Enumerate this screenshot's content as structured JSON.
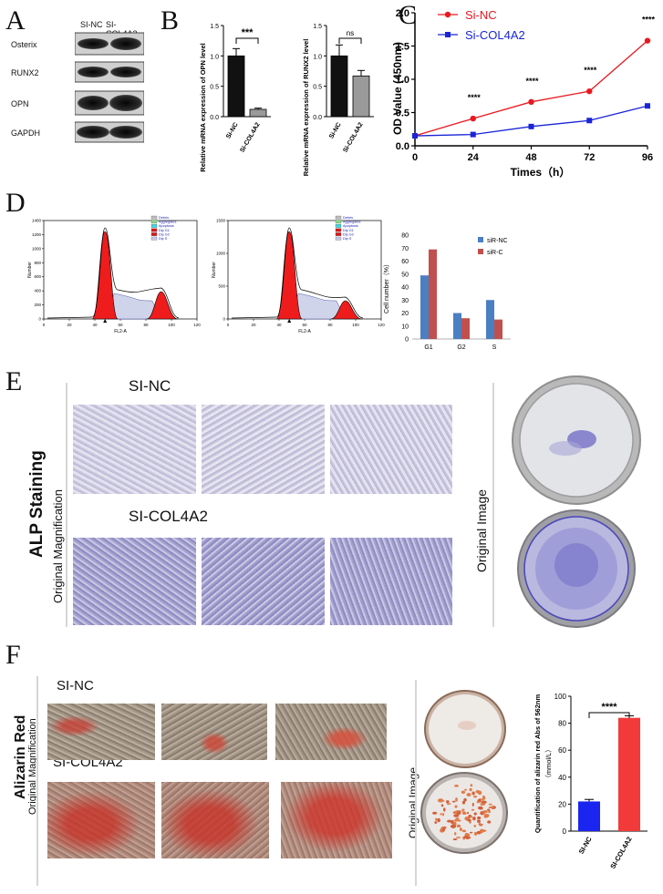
{
  "panels": {
    "A": {
      "label": "A",
      "lanes": [
        "SI-NC",
        "SI-COL4A2"
      ],
      "proteins": [
        "Osterix",
        "RUNX2",
        "OPN",
        "GAPDH"
      ]
    },
    "B": {
      "label": "B",
      "charts": [
        {
          "type": "bar",
          "categories": [
            "Si-NC",
            "Si-COL4A2"
          ],
          "values": [
            1.0,
            0.12
          ],
          "errors": [
            0.12,
            0.02
          ],
          "ylabel": "Relative mRNA expression of OPN level",
          "ylim": [
            0,
            1.5
          ],
          "yticks": [
            "0.0",
            "0.5",
            "1.0",
            "1.5"
          ],
          "sig": "***",
          "colors": [
            "#111111",
            "#9a9a9a"
          ]
        },
        {
          "type": "bar",
          "categories": [
            "Si-NC",
            "Si-COL4A2"
          ],
          "values": [
            1.0,
            0.67
          ],
          "errors": [
            0.18,
            0.09
          ],
          "ylabel": "Relative mRNA expression of RUNX2 level",
          "ylim": [
            0,
            1.5
          ],
          "yticks": [
            "0.0",
            "0.5",
            "1.0",
            "1.5"
          ],
          "sig": "ns",
          "colors": [
            "#111111",
            "#9a9a9a"
          ]
        }
      ]
    },
    "C": {
      "label": "C",
      "type": "line",
      "x": [
        0,
        24,
        48,
        72,
        96
      ],
      "xticks": [
        "0",
        "24",
        "48",
        "72",
        "96"
      ],
      "xlabel": "Times（h）",
      "ylabel": "OD Value (450nm)",
      "ylim": [
        0,
        2.0
      ],
      "yticks": [
        "0.0",
        "0.5",
        "1.0",
        "1.5",
        "2.0"
      ],
      "sig": [
        "****",
        "****",
        "****",
        "****"
      ],
      "series": [
        {
          "name": "Si-NC",
          "values": [
            0.15,
            0.41,
            0.66,
            0.82,
            1.58
          ],
          "color": "#e8191f"
        },
        {
          "name": "Si-COL4A2",
          "values": [
            0.15,
            0.17,
            0.29,
            0.38,
            0.6
          ],
          "color": "#1a25d6"
        }
      ]
    },
    "D": {
      "label": "D",
      "flow_legend": [
        "Debris",
        "Aggregates",
        "Apoptosis",
        "Dip G1",
        "Dip G2",
        "Dip S"
      ],
      "flow_xticks": [
        "0",
        "20",
        "40",
        "60",
        "80",
        "100",
        "120"
      ],
      "flow_yticks_left": [
        "0",
        "200",
        "400",
        "600",
        "800",
        "1000",
        "1200",
        "1400"
      ],
      "flow_yticks_right": [
        "0",
        "500",
        "1000",
        "1500"
      ],
      "flow_xlabel": "FL2-A",
      "flow_ylabel": "Number",
      "bar": {
        "type": "bar",
        "categories": [
          "G1",
          "G2",
          "S"
        ],
        "ylabel": "Cell number（%）",
        "ylim": [
          0,
          80
        ],
        "yticks": [
          "0",
          "10",
          "20",
          "30",
          "40",
          "50",
          "60",
          "70",
          "80"
        ],
        "series": [
          {
            "name": "siR-NC",
            "values": [
              49,
              20,
              30
            ],
            "color": "#4a7fc1"
          },
          {
            "name": "siR-C",
            "values": [
              69,
              16,
              15
            ],
            "color": "#c0504d"
          }
        ]
      }
    },
    "E": {
      "label": "E",
      "side_title": "ALP Staining",
      "side_sub": "Original Magnification",
      "row1": "SI-NC",
      "row2": "SI-COL4A2",
      "orig_label": "Original Image"
    },
    "F": {
      "label": "F",
      "side_title": "Alizarin Red",
      "side_sub": "Original Magnification",
      "row1": "SI-NC",
      "row2": "SI-COL4A2",
      "orig_label": "Original Image",
      "bar": {
        "type": "bar",
        "categories": [
          "SI-NC",
          "SI-COL4A2"
        ],
        "values": [
          22,
          84
        ],
        "errors": [
          1.5,
          1.5
        ],
        "ylabel": "Quantification of alizarin red Abs of 562nm",
        "yunit": "（mmol/L）",
        "ylim": [
          0,
          100
        ],
        "yticks": [
          "0",
          "20",
          "40",
          "60",
          "80",
          "100"
        ],
        "sig": "****",
        "colors": [
          "#1a25f0",
          "#f23a3a"
        ]
      }
    }
  }
}
